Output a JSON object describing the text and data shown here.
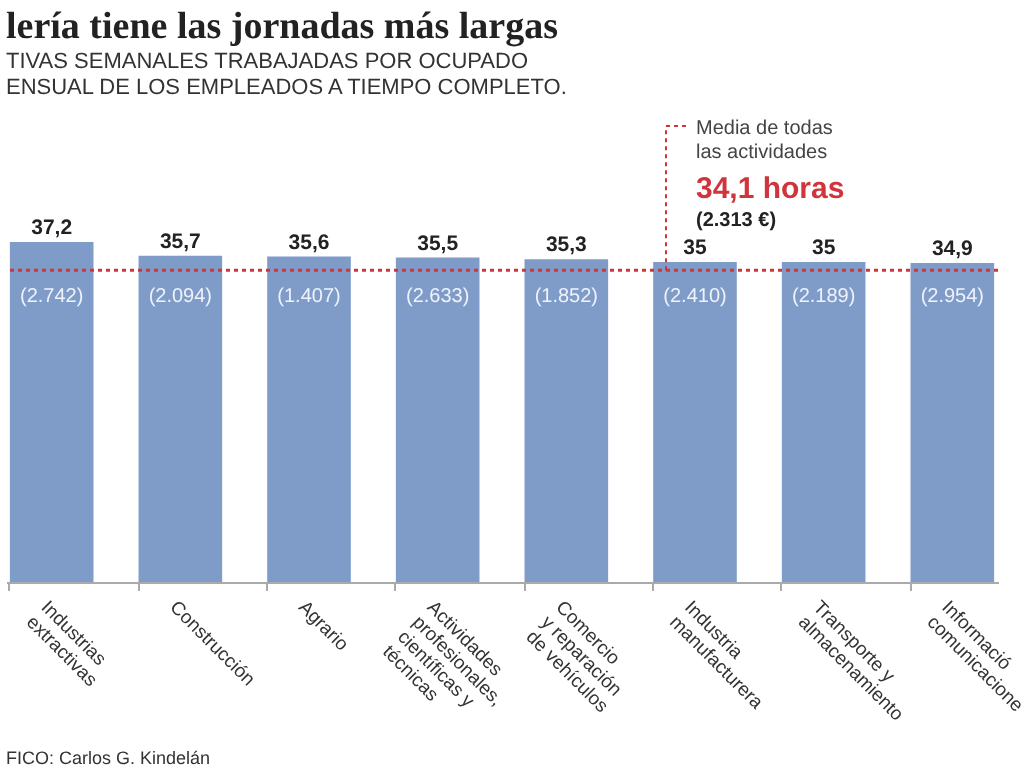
{
  "chart_data": {
    "type": "bar",
    "title": "lería tiene las jornadas más largas",
    "subtitle": "TIVAS SEMANALES TRABAJADAS POR OCUPADO\nENSUAL DE LOS EMPLEADOS A TIEMPO COMPLETO.",
    "categories": [
      "Industrias\nextractivas",
      "Construcción",
      "Agrario",
      "Actividades\nprofesionales,\ncientíficas y\ntécnicas",
      "Comercio\ny reparación\nde vehículos",
      "Industria\nmanufacturera",
      "Transporte y\nalmacenamiento",
      "Informació\ncomunicacione"
    ],
    "values": [
      37.2,
      35.7,
      35.6,
      35.5,
      35.3,
      35,
      35,
      34.9
    ],
    "value_labels": [
      "37,2",
      "35,7",
      "35,6",
      "35,5",
      "35,3",
      "35",
      "35",
      "34,9"
    ],
    "color": "#7f9cc9",
    "ref_lines": [
      {
        "axis": "y",
        "value": 34.1,
        "label": "Media de todas\nlas actividades",
        "color": "#d0343c",
        "line_style": "dotted"
      }
    ],
    "annotations": [
      "34,1 horas",
      "(2.313 €)",
      "(2.742)",
      "(2.094)",
      "(1.407)",
      "(2.633)",
      "(1.852)",
      "(2.410)",
      "(2.189)",
      "(2.954)",
      "FICO: Carlos G. Kindelán"
    ]
  }
}
